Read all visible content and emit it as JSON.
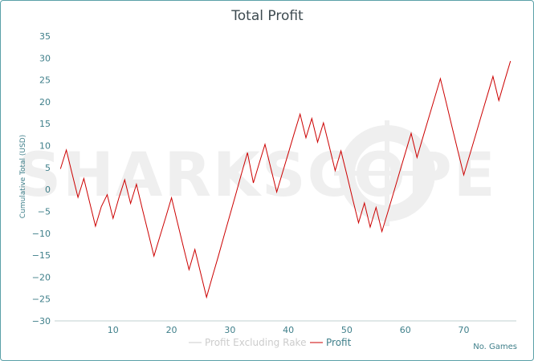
{
  "chart_data": {
    "type": "line",
    "title": "Total Profit",
    "xlabel": "No. Games",
    "ylabel": "Cumulative Total (USD)",
    "watermark": "SHARKSCOPE",
    "ylim": [
      -30,
      35
    ],
    "xlim": [
      0,
      79
    ],
    "yticks": [
      35,
      30,
      25,
      20,
      15,
      10,
      5,
      0,
      -5,
      -10,
      -15,
      -20,
      -25,
      -30
    ],
    "xticks": [
      10,
      20,
      30,
      40,
      50,
      60,
      70
    ],
    "grid": false,
    "legend_position": "bottom-center",
    "series": [
      {
        "name": "Profit Excluding Rake",
        "color": "#cccccc",
        "visible": false,
        "x": [],
        "y": []
      },
      {
        "name": "Profit",
        "color": "#cc0000",
        "visible": true,
        "x": [
          1,
          2,
          3,
          4,
          5,
          6,
          7,
          8,
          9,
          10,
          11,
          12,
          13,
          14,
          15,
          16,
          17,
          18,
          19,
          20,
          21,
          22,
          23,
          24,
          25,
          26,
          27,
          28,
          29,
          30,
          31,
          32,
          33,
          34,
          35,
          36,
          37,
          38,
          39,
          40,
          41,
          42,
          43,
          44,
          45,
          46,
          47,
          48,
          49,
          50,
          51,
          52,
          53,
          54,
          55,
          56,
          57,
          58,
          59,
          60,
          61,
          62,
          63,
          64,
          65,
          66,
          67,
          68,
          69,
          70,
          71,
          72,
          73,
          74,
          75,
          76,
          77,
          78
        ],
        "y": [
          4.7,
          9.0,
          3.6,
          -1.8,
          2.5,
          -3.0,
          -8.4,
          -3.9,
          -1.2,
          -6.6,
          -1.9,
          2.2,
          -3.2,
          1.2,
          -4.4,
          -9.8,
          -15.2,
          -10.8,
          -6.4,
          -1.9,
          -7.4,
          -12.9,
          -18.3,
          -13.7,
          -19.2,
          -24.6,
          -19.9,
          -15.3,
          -10.5,
          -5.8,
          -1.1,
          3.7,
          8.4,
          1.5,
          5.9,
          10.3,
          4.8,
          -0.6,
          3.9,
          8.3,
          12.8,
          17.2,
          11.8,
          16.2,
          10.8,
          15.2,
          9.8,
          4.3,
          8.8,
          3.4,
          -2.2,
          -7.6,
          -3.1,
          -8.6,
          -4.1,
          -9.6,
          -5.2,
          -0.7,
          3.8,
          8.3,
          12.8,
          7.3,
          11.8,
          16.3,
          20.8,
          25.3,
          19.8,
          14.3,
          8.8,
          3.3,
          7.8,
          12.3,
          16.8,
          21.3,
          25.8,
          20.3,
          24.8,
          29.3
        ]
      }
    ]
  }
}
